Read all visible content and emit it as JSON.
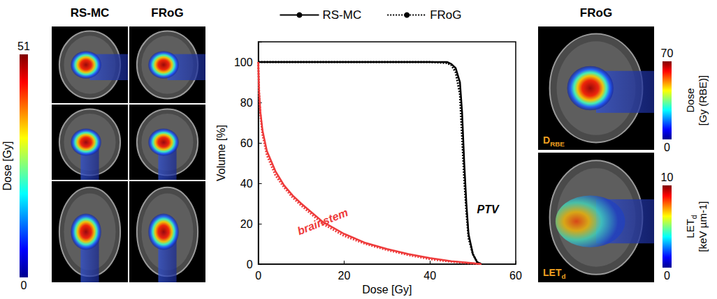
{
  "chart_data": {
    "type": "line",
    "xlabel": "Dose [Gy]",
    "ylabel": "Volume [%]",
    "xlim": [
      0,
      60
    ],
    "xticks": [
      0,
      20,
      40,
      60
    ],
    "ylim": [
      0,
      110
    ],
    "yticks": [
      0,
      20,
      40,
      60,
      80,
      100
    ],
    "grid": false,
    "legend": "top",
    "series": [
      {
        "name": "RS-MC",
        "color": "#000000",
        "line_style": "solid",
        "x": [
          0,
          40,
          44,
          45,
          46,
          47,
          47.5,
          48,
          48.5,
          49,
          50,
          51,
          52
        ],
        "values": [
          100,
          100,
          100,
          99,
          97,
          90,
          75,
          50,
          30,
          15,
          5,
          1,
          0
        ]
      },
      {
        "name": "FRoG",
        "color": "#000000",
        "line_style": "dotted",
        "x": [
          0,
          40,
          44,
          45,
          46,
          47,
          47.5,
          48,
          48.5,
          49,
          50,
          51,
          52
        ],
        "values": [
          100,
          100,
          99.5,
          98.5,
          95,
          84,
          63,
          42,
          26,
          13,
          5,
          1,
          0
        ]
      },
      {
        "name": "RS-MC",
        "color": "#ee3b3b",
        "line_style": "solid",
        "x": [
          0,
          0.2,
          0.5,
          1,
          2,
          4,
          6,
          8,
          10,
          15,
          20,
          25,
          30,
          35,
          40,
          45,
          50,
          52
        ],
        "values": [
          100,
          85,
          75,
          66,
          56,
          46,
          39,
          34,
          30,
          21,
          15,
          10.5,
          7.5,
          5,
          3,
          1.5,
          0.5,
          0
        ]
      },
      {
        "name": "FRoG",
        "color": "#ee3b3b",
        "line_style": "dotted",
        "x": [
          0,
          0.2,
          0.5,
          1,
          2,
          4,
          6,
          8,
          10,
          15,
          20,
          25,
          30,
          35,
          40,
          45,
          50,
          52
        ],
        "values": [
          100,
          84,
          74,
          64,
          54,
          44,
          38,
          33,
          29,
          20,
          14,
          10,
          7,
          4.5,
          2.5,
          1.2,
          0.3,
          0
        ]
      }
    ],
    "annotations": [
      {
        "text": "PTV",
        "x": 53.5,
        "y": 27,
        "color": "#000000"
      },
      {
        "text": "brainstem",
        "x": 15,
        "y": 21,
        "color": "#ee3b3b"
      }
    ]
  },
  "left_panel": {
    "columns": [
      "RS-MC",
      "FRoG"
    ],
    "colorbar": {
      "title": "Dose [Gy]",
      "vlim": [
        0,
        51
      ],
      "vticks": [
        0,
        51
      ]
    }
  },
  "right_panel": {
    "column": "FRoG",
    "images": [
      {
        "tag": {
          "text": "D",
          "subscript": "RBE"
        },
        "colorbar": {
          "title": {
            "text": "Dose"
          },
          "unit": "[Gy (RBE)]",
          "vlim": [
            0,
            70
          ],
          "vticks": [
            0,
            70
          ]
        }
      },
      {
        "tag": {
          "text": "LET",
          "subscript": "d"
        },
        "colorbar": {
          "title": {
            "text": "LET",
            "subscript": "d"
          },
          "unit": "[keV µm-1]",
          "vlim": [
            0,
            10
          ],
          "vticks": [
            0,
            10
          ]
        }
      }
    ]
  }
}
